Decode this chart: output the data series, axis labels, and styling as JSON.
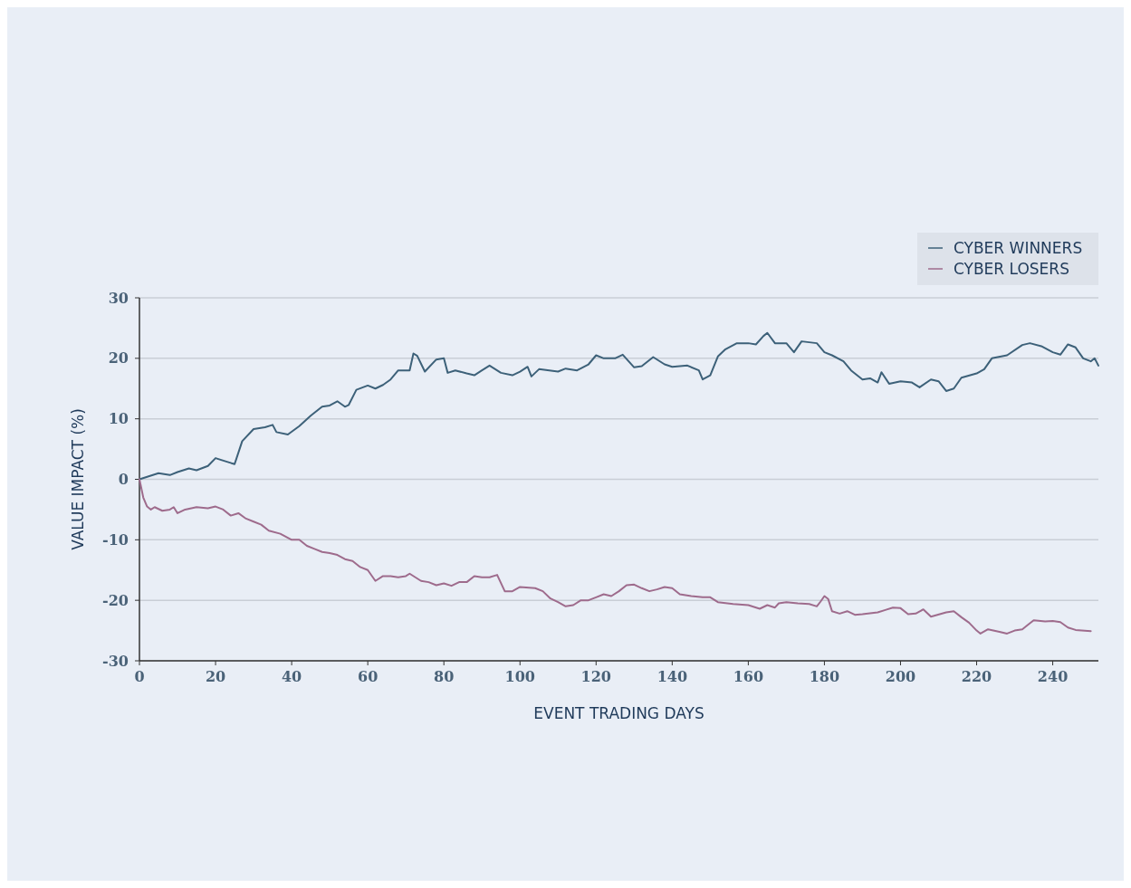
{
  "chart_data": {
    "type": "line",
    "xlabel": "EVENT TRADING DAYS",
    "ylabel": "VALUE IMPACT (%)",
    "xlim": [
      0,
      252
    ],
    "xticks": [
      0,
      20,
      40,
      60,
      80,
      100,
      120,
      140,
      160,
      180,
      200,
      220,
      240
    ],
    "ylim": [
      -30,
      30
    ],
    "yticks": [
      -30,
      -20,
      -10,
      0,
      10,
      20,
      30
    ],
    "grid": "y",
    "legend": "top right",
    "marker": "none",
    "line_style": "solid",
    "series": [
      {
        "name": "CYBER WINNERS",
        "color": "#3d6179",
        "x": [
          0,
          5,
          8,
          10,
          13,
          15,
          18,
          20,
          23,
          25,
          27,
          30,
          33,
          35,
          36,
          39,
          42,
          45,
          48,
          50,
          52,
          54,
          55,
          57,
          60,
          62,
          64,
          66,
          68,
          71,
          72,
          73,
          75,
          78,
          80,
          81,
          83,
          86,
          88,
          90,
          92,
          95,
          98,
          100,
          102,
          103,
          105,
          110,
          112,
          115,
          118,
          120,
          122,
          125,
          127,
          130,
          132,
          135,
          138,
          140,
          144,
          147,
          148,
          150,
          152,
          154,
          157,
          160,
          162,
          164,
          165,
          167,
          170,
          172,
          174,
          178,
          180,
          182,
          185,
          187,
          190,
          192,
          194,
          195,
          197,
          200,
          203,
          205,
          208,
          210,
          212,
          214,
          216,
          220,
          222,
          224,
          228,
          232,
          234,
          237,
          240,
          242,
          244,
          246,
          248,
          250,
          251,
          252
        ],
        "values": [
          0,
          1,
          0.7,
          1.2,
          1.8,
          1.5,
          2.2,
          3.5,
          2.9,
          2.5,
          6.3,
          8.3,
          8.6,
          9,
          7.8,
          7.4,
          8.8,
          10.5,
          12,
          12.2,
          12.9,
          12,
          12.3,
          14.8,
          15.5,
          15,
          15.6,
          16.5,
          18,
          18,
          20.8,
          20.4,
          17.8,
          19.8,
          20,
          17.6,
          18,
          17.5,
          17.2,
          18,
          18.8,
          17.6,
          17.2,
          17.8,
          18.6,
          17,
          18.2,
          17.8,
          18.3,
          18,
          19,
          20.5,
          20,
          20,
          20.6,
          18.5,
          18.7,
          20.2,
          19,
          18.6,
          18.8,
          18,
          16.5,
          17.2,
          20.3,
          21.5,
          22.5,
          22.5,
          22.3,
          23.7,
          24.2,
          22.5,
          22.5,
          21,
          22.8,
          22.5,
          21,
          20.5,
          19.5,
          18,
          16.5,
          16.7,
          16,
          17.7,
          15.8,
          16.2,
          16,
          15.2,
          16.5,
          16.2,
          14.6,
          15,
          16.8,
          17.5,
          18.2,
          20,
          20.5,
          22.2,
          22.5,
          22,
          21,
          20.6,
          22.3,
          21.8,
          20,
          19.5,
          20,
          18.8
        ]
      },
      {
        "name": "CYBER LOSERS",
        "color": "#9e6b8c",
        "x": [
          0,
          1,
          2,
          3,
          4,
          6,
          8,
          9,
          10,
          12,
          15,
          18,
          20,
          22,
          24,
          26,
          28,
          30,
          32,
          34,
          37,
          40,
          42,
          44,
          46,
          48,
          50,
          52,
          54,
          56,
          58,
          60,
          62,
          64,
          66,
          68,
          70,
          71,
          74,
          76,
          78,
          80,
          82,
          84,
          86,
          88,
          90,
          92,
          94,
          96,
          98,
          100,
          104,
          106,
          108,
          110,
          112,
          114,
          116,
          118,
          120,
          122,
          124,
          126,
          128,
          130,
          132,
          134,
          136,
          138,
          140,
          142,
          145,
          148,
          150,
          152,
          156,
          160,
          163,
          165,
          167,
          168,
          170,
          173,
          176,
          178,
          179,
          180,
          181,
          182,
          184,
          186,
          188,
          190,
          194,
          196,
          198,
          200,
          202,
          204,
          206,
          208,
          212,
          214,
          216,
          218,
          220,
          221,
          223,
          226,
          228,
          230,
          232,
          234,
          235,
          238,
          240,
          242,
          244,
          246,
          250
        ],
        "values": [
          0,
          -3,
          -4.5,
          -5,
          -4.6,
          -5.2,
          -5,
          -4.6,
          -5.6,
          -5,
          -4.6,
          -4.8,
          -4.5,
          -5,
          -6,
          -5.6,
          -6.5,
          -7,
          -7.5,
          -8.5,
          -9,
          -10,
          -10,
          -11,
          -11.5,
          -12,
          -12.2,
          -12.5,
          -13.2,
          -13.5,
          -14.5,
          -15,
          -16.8,
          -16,
          -16,
          -16.2,
          -16,
          -15.6,
          -16.8,
          -17,
          -17.5,
          -17.2,
          -17.6,
          -17,
          -17,
          -16,
          -16.2,
          -16.2,
          -15.8,
          -18.5,
          -18.5,
          -17.8,
          -18,
          -18.5,
          -19.7,
          -20.3,
          -21,
          -20.8,
          -20,
          -20,
          -19.5,
          -19,
          -19.3,
          -18.5,
          -17.5,
          -17.4,
          -18,
          -18.5,
          -18.2,
          -17.8,
          -18,
          -19,
          -19.3,
          -19.5,
          -19.5,
          -20.3,
          -20.6,
          -20.8,
          -21.4,
          -20.8,
          -21.2,
          -20.5,
          -20.3,
          -20.5,
          -20.6,
          -21,
          -20.2,
          -19.3,
          -19.8,
          -21.8,
          -22.2,
          -21.8,
          -22.4,
          -22.3,
          -22,
          -21.6,
          -21.2,
          -21.3,
          -22.3,
          -22.2,
          -21.5,
          -22.7,
          -22,
          -21.8,
          -22.8,
          -23.7,
          -25,
          -25.5,
          -24.8,
          -25.2,
          -25.5,
          -25,
          -24.8,
          -23.8,
          -23.3,
          -23.5,
          -23.4,
          -23.6,
          -24.5,
          -24.9,
          -25.1
        ]
      }
    ]
  }
}
